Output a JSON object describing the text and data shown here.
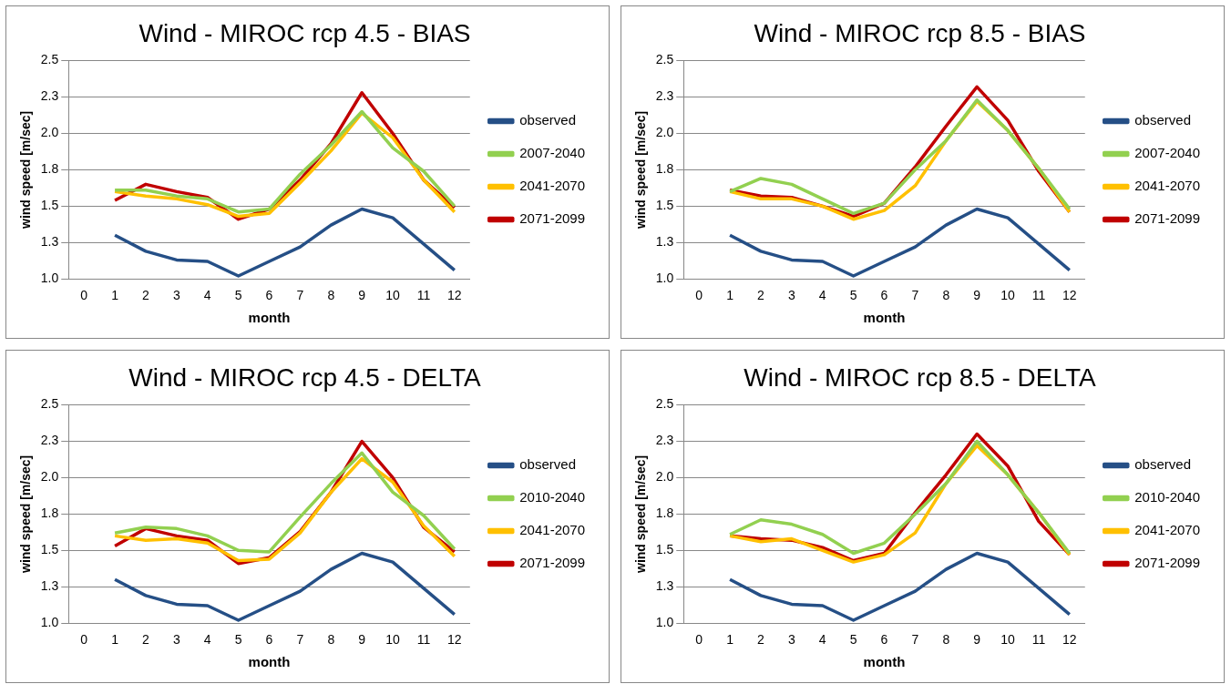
{
  "chart_data": [
    {
      "type": "line",
      "title": "Wind - MIROC rcp 4.5 - BIAS",
      "xlabel": "month",
      "ylabel": "wind speed [m/sec]",
      "x": [
        1,
        2,
        3,
        4,
        5,
        6,
        7,
        8,
        9,
        10,
        11,
        12
      ],
      "xlim": [
        -0.5,
        12.5
      ],
      "xticks": [
        0,
        1,
        2,
        3,
        4,
        5,
        6,
        7,
        8,
        9,
        10,
        11,
        12
      ],
      "ylim": [
        1,
        2.5
      ],
      "yticks": [
        {
          "value": 1,
          "label": "1.0"
        },
        {
          "value": 1.25,
          "label": "1.3"
        },
        {
          "value": 1.5,
          "label": "1.5"
        },
        {
          "value": 1.75,
          "label": "1.8"
        },
        {
          "value": 2,
          "label": "2.0"
        },
        {
          "value": 2.25,
          "label": "2.3"
        },
        {
          "value": 2.5,
          "label": "2.5"
        }
      ],
      "grid": "y",
      "legend": "right",
      "marker": "none",
      "series": [
        {
          "name": "observed",
          "color": "#254f86",
          "values": [
            1.3,
            1.19,
            1.13,
            1.12,
            1.02,
            1.12,
            1.22,
            1.37,
            1.48,
            1.42,
            1.24,
            1.06
          ]
        },
        {
          "name": "2007-2040",
          "color": "#92d050",
          "values": [
            1.61,
            1.61,
            1.57,
            1.55,
            1.46,
            1.48,
            1.72,
            1.92,
            2.15,
            1.9,
            1.74,
            1.5
          ]
        },
        {
          "name": "2041-2070",
          "color": "#ffc000",
          "values": [
            1.6,
            1.57,
            1.55,
            1.51,
            1.43,
            1.45,
            1.66,
            1.88,
            2.14,
            1.97,
            1.68,
            1.46
          ]
        },
        {
          "name": "2071-2099",
          "color": "#c00000",
          "values": [
            1.54,
            1.65,
            1.6,
            1.56,
            1.41,
            1.48,
            1.68,
            1.93,
            2.28,
            2.0,
            1.68,
            1.49
          ]
        }
      ]
    },
    {
      "type": "line",
      "title": "Wind - MIROC rcp 8.5 - BIAS",
      "xlabel": "month",
      "ylabel": "wind speed [m/sec]",
      "x": [
        1,
        2,
        3,
        4,
        5,
        6,
        7,
        8,
        9,
        10,
        11,
        12
      ],
      "xlim": [
        -0.5,
        12.5
      ],
      "xticks": [
        0,
        1,
        2,
        3,
        4,
        5,
        6,
        7,
        8,
        9,
        10,
        11,
        12
      ],
      "ylim": [
        1,
        2.5
      ],
      "yticks": [
        {
          "value": 1,
          "label": "1.0"
        },
        {
          "value": 1.25,
          "label": "1.3"
        },
        {
          "value": 1.5,
          "label": "1.5"
        },
        {
          "value": 1.75,
          "label": "1.8"
        },
        {
          "value": 2,
          "label": "2.0"
        },
        {
          "value": 2.25,
          "label": "2.3"
        },
        {
          "value": 2.5,
          "label": "2.5"
        }
      ],
      "grid": "y",
      "legend": "right",
      "marker": "none",
      "series": [
        {
          "name": "observed",
          "color": "#254f86",
          "values": [
            1.3,
            1.19,
            1.13,
            1.12,
            1.02,
            1.12,
            1.22,
            1.37,
            1.48,
            1.42,
            1.24,
            1.06
          ]
        },
        {
          "name": "2007-2040",
          "color": "#92d050",
          "values": [
            1.6,
            1.69,
            1.65,
            1.55,
            1.45,
            1.52,
            1.75,
            1.95,
            2.23,
            2.02,
            1.76,
            1.48
          ]
        },
        {
          "name": "2041-2070",
          "color": "#ffc000",
          "values": [
            1.6,
            1.55,
            1.55,
            1.5,
            1.41,
            1.47,
            1.64,
            1.95,
            2.22,
            2.02,
            1.76,
            1.46
          ]
        },
        {
          "name": "2071-2099",
          "color": "#c00000",
          "values": [
            1.61,
            1.57,
            1.56,
            1.5,
            1.43,
            1.52,
            1.77,
            2.05,
            2.32,
            2.09,
            1.74,
            1.46
          ]
        }
      ]
    },
    {
      "type": "line",
      "title": "Wind - MIROC rcp 4.5 - DELTA",
      "xlabel": "month",
      "ylabel": "wind speed [m/sec]",
      "x": [
        1,
        2,
        3,
        4,
        5,
        6,
        7,
        8,
        9,
        10,
        11,
        12
      ],
      "xlim": [
        -0.5,
        12.5
      ],
      "xticks": [
        0,
        1,
        2,
        3,
        4,
        5,
        6,
        7,
        8,
        9,
        10,
        11,
        12
      ],
      "ylim": [
        1,
        2.5
      ],
      "yticks": [
        {
          "value": 1,
          "label": "1.0"
        },
        {
          "value": 1.25,
          "label": "1.3"
        },
        {
          "value": 1.5,
          "label": "1.5"
        },
        {
          "value": 1.75,
          "label": "1.8"
        },
        {
          "value": 2,
          "label": "2.0"
        },
        {
          "value": 2.25,
          "label": "2.3"
        },
        {
          "value": 2.5,
          "label": "2.5"
        }
      ],
      "grid": "y",
      "legend": "right",
      "marker": "none",
      "series": [
        {
          "name": "observed",
          "color": "#254f86",
          "values": [
            1.3,
            1.19,
            1.13,
            1.12,
            1.02,
            1.12,
            1.22,
            1.37,
            1.48,
            1.42,
            1.24,
            1.06
          ]
        },
        {
          "name": "2010-2040",
          "color": "#92d050",
          "values": [
            1.62,
            1.66,
            1.65,
            1.6,
            1.5,
            1.49,
            1.73,
            1.96,
            2.17,
            1.9,
            1.74,
            1.51
          ]
        },
        {
          "name": "2041-2070",
          "color": "#ffc000",
          "values": [
            1.6,
            1.57,
            1.58,
            1.55,
            1.43,
            1.44,
            1.62,
            1.9,
            2.13,
            1.97,
            1.67,
            1.46
          ]
        },
        {
          "name": "2071-2099",
          "color": "#c00000",
          "values": [
            1.53,
            1.65,
            1.6,
            1.57,
            1.41,
            1.45,
            1.63,
            1.9,
            2.25,
            2.0,
            1.66,
            1.49
          ]
        }
      ]
    },
    {
      "type": "line",
      "title": "Wind - MIROC rcp 8.5 - DELTA",
      "xlabel": "month",
      "ylabel": "wind speed [m/sec]",
      "x": [
        1,
        2,
        3,
        4,
        5,
        6,
        7,
        8,
        9,
        10,
        11,
        12
      ],
      "xlim": [
        -0.5,
        12.5
      ],
      "xticks": [
        0,
        1,
        2,
        3,
        4,
        5,
        6,
        7,
        8,
        9,
        10,
        11,
        12
      ],
      "ylim": [
        1,
        2.5
      ],
      "yticks": [
        {
          "value": 1,
          "label": "1.0"
        },
        {
          "value": 1.25,
          "label": "1.3"
        },
        {
          "value": 1.5,
          "label": "1.5"
        },
        {
          "value": 1.75,
          "label": "1.8"
        },
        {
          "value": 2,
          "label": "2.0"
        },
        {
          "value": 2.25,
          "label": "2.3"
        },
        {
          "value": 2.5,
          "label": "2.5"
        }
      ],
      "grid": "y",
      "legend": "right",
      "marker": "none",
      "series": [
        {
          "name": "observed",
          "color": "#254f86",
          "values": [
            1.3,
            1.19,
            1.13,
            1.12,
            1.02,
            1.12,
            1.22,
            1.37,
            1.48,
            1.42,
            1.24,
            1.06
          ]
        },
        {
          "name": "2010-2040",
          "color": "#92d050",
          "values": [
            1.61,
            1.71,
            1.68,
            1.61,
            1.48,
            1.55,
            1.75,
            1.96,
            2.25,
            2.02,
            1.76,
            1.48
          ]
        },
        {
          "name": "2041-2070",
          "color": "#ffc000",
          "values": [
            1.6,
            1.56,
            1.58,
            1.5,
            1.42,
            1.47,
            1.62,
            1.96,
            2.22,
            2.02,
            1.76,
            1.47
          ]
        },
        {
          "name": "2071-2099",
          "color": "#c00000",
          "values": [
            1.6,
            1.58,
            1.57,
            1.52,
            1.43,
            1.48,
            1.76,
            2.02,
            2.3,
            2.08,
            1.7,
            1.47
          ]
        }
      ]
    }
  ]
}
